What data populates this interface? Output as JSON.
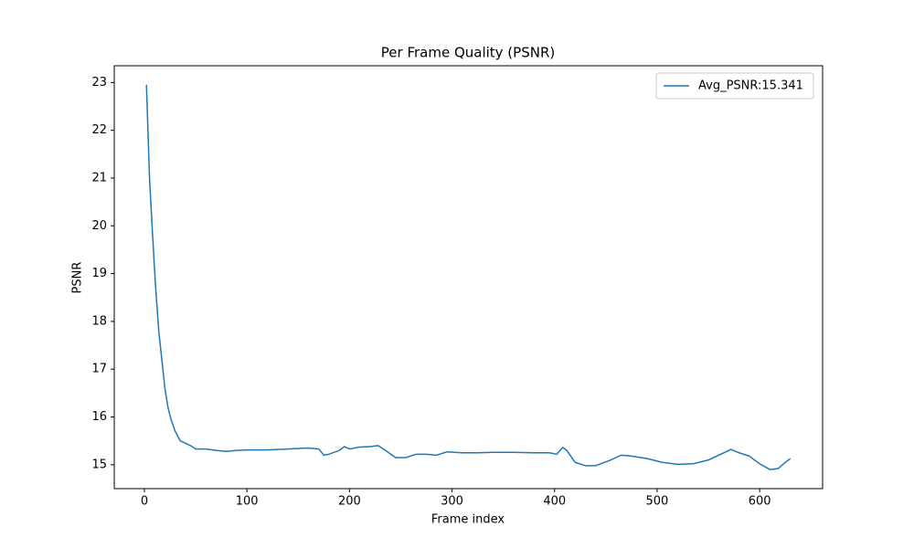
{
  "chart_data": {
    "type": "line",
    "title": "Per Frame Quality (PSNR)",
    "xlabel": "Frame index",
    "ylabel": "PSNR",
    "x": [
      2,
      5,
      8,
      11,
      14,
      17,
      20,
      23,
      26,
      30,
      35,
      40,
      45,
      50,
      60,
      70,
      80,
      90,
      100,
      120,
      140,
      160,
      170,
      175,
      180,
      190,
      195,
      200,
      210,
      220,
      228,
      235,
      245,
      255,
      265,
      275,
      285,
      295,
      310,
      325,
      340,
      360,
      380,
      395,
      402,
      408,
      412,
      420,
      430,
      440,
      455,
      465,
      475,
      490,
      505,
      520,
      535,
      550,
      565,
      572,
      580,
      590,
      600,
      610,
      618,
      625,
      630
    ],
    "series": [
      {
        "name": "Avg_PSNR:15.341",
        "color": "#1f77b4",
        "values": [
          22.95,
          21.0,
          19.8,
          18.7,
          17.8,
          17.2,
          16.6,
          16.2,
          15.95,
          15.7,
          15.5,
          15.45,
          15.4,
          15.33,
          15.33,
          15.3,
          15.28,
          15.3,
          15.31,
          15.31,
          15.33,
          15.35,
          15.33,
          15.2,
          15.22,
          15.3,
          15.38,
          15.33,
          15.37,
          15.38,
          15.4,
          15.3,
          15.15,
          15.15,
          15.22,
          15.22,
          15.2,
          15.27,
          15.25,
          15.25,
          15.26,
          15.26,
          15.25,
          15.25,
          15.22,
          15.36,
          15.3,
          15.05,
          14.98,
          14.98,
          15.1,
          15.2,
          15.18,
          15.13,
          15.05,
          15.01,
          15.02,
          15.1,
          15.25,
          15.32,
          15.25,
          15.18,
          15.02,
          14.9,
          14.92,
          15.05,
          15.13
        ]
      }
    ],
    "xlim": [
      -29.4,
      661.4
    ],
    "xticks": [
      0,
      100,
      200,
      300,
      400,
      500,
      600
    ],
    "ylim": [
      14.5,
      23.35
    ],
    "yticks": [
      15,
      16,
      17,
      18,
      19,
      20,
      21,
      22,
      23
    ],
    "legend": "upper right"
  }
}
